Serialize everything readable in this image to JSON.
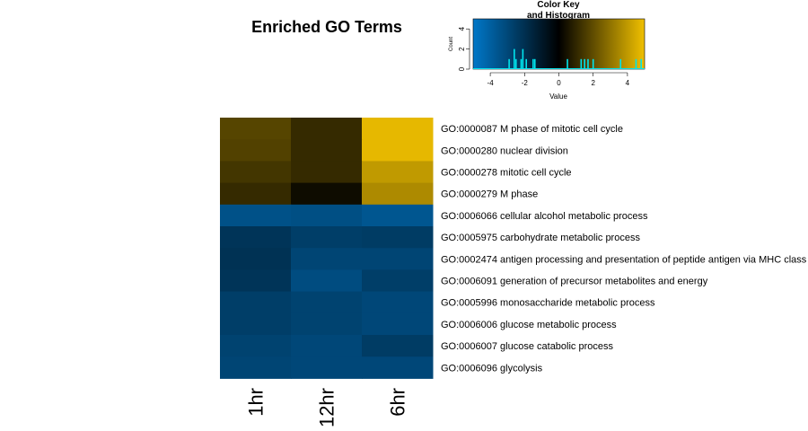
{
  "chart_data": {
    "type": "heatmap",
    "title": "Enriched GO Terms",
    "columns": [
      "1hr",
      "12hr",
      "6hr"
    ],
    "rows": [
      "GO:0000087 M phase of mitotic cell cycle",
      "GO:0000280 nuclear division",
      "GO:0000278 mitotic cell cycle",
      "GO:0000279 M phase",
      "GO:0006066 cellular alcohol metabolic process",
      "GO:0005975 carbohydrate metabolic process",
      "GO:0002474 antigen processing and presentation of peptide antigen via MHC class",
      "GO:0006091 generation of precursor metabolites and energy",
      "GO:0005996 monosaccharide metabolic process",
      "GO:0006006 glucose metabolic process",
      "GO:0006007 glucose catabolic process",
      "GO:0006096 glycolysis"
    ],
    "values": [
      [
        1.8,
        1.1,
        4.8
      ],
      [
        1.7,
        1.1,
        4.8
      ],
      [
        1.4,
        1.1,
        4.0
      ],
      [
        1.1,
        0.3,
        3.6
      ],
      [
        -3.4,
        -3.3,
        -3.6
      ],
      [
        -2.2,
        -2.6,
        -2.5
      ],
      [
        -2.1,
        -2.9,
        -2.9
      ],
      [
        -2.2,
        -3.2,
        -2.6
      ],
      [
        -2.6,
        -2.8,
        -3.0
      ],
      [
        -2.6,
        -2.8,
        -3.0
      ],
      [
        -2.8,
        -3.0,
        -2.5
      ],
      [
        -2.9,
        -3.0,
        -3.0
      ]
    ],
    "color_scale": {
      "min": -5,
      "max": 5,
      "low_color": "#0077c8",
      "mid_color": "#000000",
      "high_color": "#f0c000"
    },
    "color_key": {
      "title_line1": "Color Key",
      "title_line2": "and Histogram",
      "xlabel": "Value",
      "ylabel": "Count",
      "xticks": [
        -4,
        -2,
        0,
        2,
        4
      ],
      "yticks": [
        0,
        2,
        4
      ],
      "xlim": [
        -5,
        5
      ],
      "ylim": [
        0,
        5
      ],
      "histogram_color": "#00e5ee",
      "histogram_values": [
        -2.9,
        -2.6,
        -2.6,
        -2.5,
        -2.2,
        -2.1,
        -2.1,
        -1.9,
        -1.5,
        -1.4,
        0.5,
        1.3,
        1.5,
        1.7,
        2.0,
        3.6,
        4.5,
        4.8
      ]
    }
  }
}
